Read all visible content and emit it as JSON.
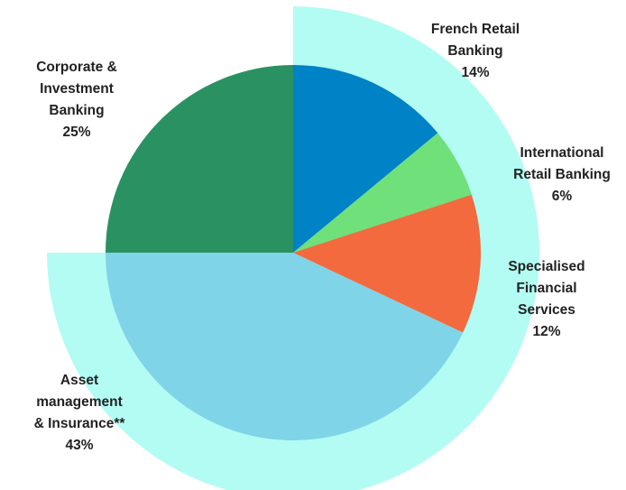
{
  "chart_data": {
    "type": "pie",
    "categories": [
      [
        "French Retail",
        "Banking"
      ],
      [
        "International",
        "Retail Banking"
      ],
      [
        "Specialised",
        "Financial",
        "Services"
      ],
      [
        "Asset",
        "management",
        "& Insurance**"
      ],
      [
        "Corporate &",
        "Investment",
        "Banking"
      ]
    ],
    "values": [
      14,
      6,
      12,
      43,
      25
    ],
    "value_labels": [
      "14%",
      "6%",
      "12%",
      "43%",
      "25%"
    ],
    "colors": [
      "#0082c6",
      "#6fe07a",
      "#f26a3e",
      "#80d4e8",
      "#2a9262"
    ]
  }
}
